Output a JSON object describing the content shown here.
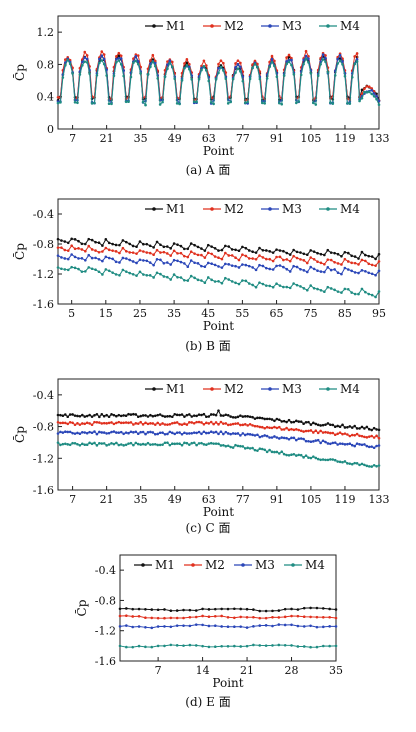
{
  "series_colors": {
    "M1": "#111111",
    "M2": "#e0301e",
    "M3": "#2a46b8",
    "M4": "#1f8c82"
  },
  "chart_data": [
    {
      "id": "A",
      "type": "line",
      "caption": "(a) A 面",
      "ylabel": "C̄p",
      "xlabel": "Point",
      "xlim": [
        1,
        133
      ],
      "ylim": [
        0,
        1.4
      ],
      "xticks": [
        7,
        21,
        35,
        49,
        63,
        77,
        91,
        105,
        119,
        133
      ],
      "yticks": [
        0,
        0.4,
        0.8,
        1.2
      ],
      "legend": "top-right",
      "series": [
        {
          "name": "M1"
        },
        {
          "name": "M2"
        },
        {
          "name": "M3"
        },
        {
          "name": "M4"
        }
      ]
    },
    {
      "id": "B",
      "type": "line",
      "caption": "(b) B 面",
      "ylabel": "C̄p",
      "xlabel": "Point",
      "xlim": [
        1,
        95
      ],
      "ylim": [
        -1.6,
        -0.2
      ],
      "xticks": [
        5,
        15,
        25,
        35,
        45,
        55,
        65,
        75,
        85,
        95
      ],
      "yticks": [
        -1.6,
        -1.2,
        -0.8,
        -0.4
      ],
      "legend": "top-right",
      "series": [
        {
          "name": "M1"
        },
        {
          "name": "M2"
        },
        {
          "name": "M3"
        },
        {
          "name": "M4"
        }
      ]
    },
    {
      "id": "C",
      "type": "line",
      "caption": "(c) C 面",
      "ylabel": "C̄p",
      "xlabel": "Point",
      "xlim": [
        1,
        133
      ],
      "ylim": [
        -1.6,
        -0.2
      ],
      "xticks": [
        7,
        21,
        35,
        49,
        63,
        77,
        91,
        105,
        119,
        133
      ],
      "yticks": [
        -1.6,
        -1.2,
        -0.8,
        -0.4
      ],
      "legend": "top-right",
      "series": [
        {
          "name": "M1"
        },
        {
          "name": "M2"
        },
        {
          "name": "M3"
        },
        {
          "name": "M4"
        }
      ]
    },
    {
      "id": "E",
      "type": "line",
      "caption": "(d) E 面",
      "ylabel": "C̄p",
      "xlabel": "Point",
      "xlim": [
        1,
        35
      ],
      "ylim": [
        -1.6,
        -0.2
      ],
      "xticks": [
        7,
        14,
        21,
        28,
        35
      ],
      "yticks": [
        -1.6,
        -1.2,
        -0.8,
        -0.4
      ],
      "legend": "top-right",
      "series": [
        {
          "name": "M1"
        },
        {
          "name": "M2"
        },
        {
          "name": "M3"
        },
        {
          "name": "M4"
        }
      ]
    }
  ]
}
